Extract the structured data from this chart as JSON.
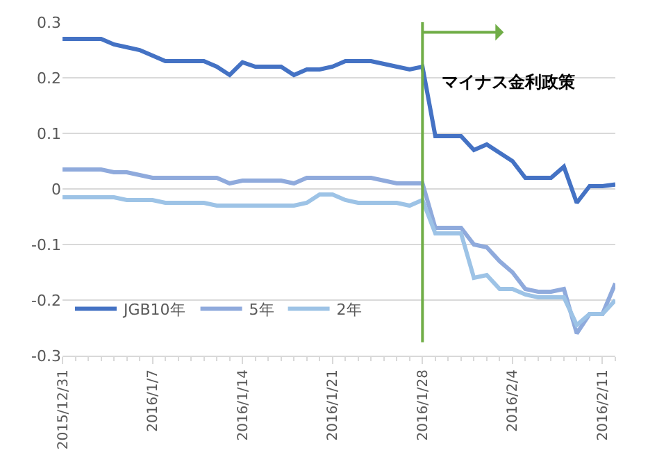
{
  "chart_data": {
    "type": "line",
    "x": [
      "2015-12-31",
      "2016-01-01",
      "2016-01-02",
      "2016-01-03",
      "2016-01-04",
      "2016-01-05",
      "2016-01-06",
      "2016-01-07",
      "2016-01-08",
      "2016-01-09",
      "2016-01-10",
      "2016-01-11",
      "2016-01-12",
      "2016-01-13",
      "2016-01-14",
      "2016-01-15",
      "2016-01-16",
      "2016-01-17",
      "2016-01-18",
      "2016-01-19",
      "2016-01-20",
      "2016-01-21",
      "2016-01-22",
      "2016-01-23",
      "2016-01-24",
      "2016-01-25",
      "2016-01-26",
      "2016-01-27",
      "2016-01-28",
      "2016-01-29",
      "2016-01-30",
      "2016-01-31",
      "2016-02-01",
      "2016-02-02",
      "2016-02-03",
      "2016-02-04",
      "2016-02-05",
      "2016-02-06",
      "2016-02-07",
      "2016-02-08",
      "2016-02-09",
      "2016-02-10",
      "2016-02-11",
      "2016-02-12"
    ],
    "series": [
      {
        "name": "JGB10年",
        "color": "#4472c4",
        "values": [
          0.27,
          0.27,
          0.27,
          0.27,
          0.26,
          0.255,
          0.25,
          0.24,
          0.23,
          0.23,
          0.23,
          0.23,
          0.22,
          0.205,
          0.228,
          0.22,
          0.22,
          0.22,
          0.205,
          0.215,
          0.215,
          0.22,
          0.23,
          0.23,
          0.23,
          0.225,
          0.22,
          0.215,
          0.22,
          0.095,
          0.095,
          0.095,
          0.07,
          0.08,
          0.065,
          0.05,
          0.02,
          0.02,
          0.02,
          0.04,
          -0.025,
          0.005,
          0.005,
          0.008
        ]
      },
      {
        "name": "5年",
        "color": "#8faadc",
        "values": [
          0.035,
          0.035,
          0.035,
          0.035,
          0.03,
          0.03,
          0.025,
          0.02,
          0.02,
          0.02,
          0.02,
          0.02,
          0.02,
          0.01,
          0.015,
          0.015,
          0.015,
          0.015,
          0.01,
          0.02,
          0.02,
          0.02,
          0.02,
          0.02,
          0.02,
          0.015,
          0.01,
          0.01,
          0.01,
          -0.07,
          -0.07,
          -0.07,
          -0.1,
          -0.105,
          -0.13,
          -0.15,
          -0.18,
          -0.185,
          -0.185,
          -0.18,
          -0.26,
          -0.225,
          -0.225,
          -0.17
        ]
      },
      {
        "name": "2年",
        "color": "#9dc3e6",
        "values": [
          -0.015,
          -0.015,
          -0.015,
          -0.015,
          -0.015,
          -0.02,
          -0.02,
          -0.02,
          -0.025,
          -0.025,
          -0.025,
          -0.025,
          -0.03,
          -0.03,
          -0.03,
          -0.03,
          -0.03,
          -0.03,
          -0.03,
          -0.025,
          -0.01,
          -0.01,
          -0.02,
          -0.025,
          -0.025,
          -0.025,
          -0.025,
          -0.03,
          -0.02,
          -0.08,
          -0.08,
          -0.08,
          -0.16,
          -0.155,
          -0.18,
          -0.18,
          -0.19,
          -0.195,
          -0.195,
          -0.195,
          -0.245,
          -0.225,
          -0.225,
          -0.2
        ]
      }
    ],
    "xlim": [
      "2015-12-31",
      "2016-02-12"
    ],
    "xticks": [
      {
        "value": "2015-12-31",
        "label": "2015/12/31"
      },
      {
        "value": "2016-01-07",
        "label": "2016/1/7"
      },
      {
        "value": "2016-01-14",
        "label": "2016/1/14"
      },
      {
        "value": "2016-01-21",
        "label": "2016/1/21"
      },
      {
        "value": "2016-01-28",
        "label": "2016/1/28"
      },
      {
        "value": "2016-02-04",
        "label": "2016/2/4"
      },
      {
        "value": "2016-02-11",
        "label": "2016/2/11"
      }
    ],
    "ylim": [
      -0.3,
      0.3
    ],
    "yticks": [
      -0.3,
      -0.2,
      -0.1,
      0,
      0.1,
      0.2,
      0.3
    ],
    "grid": "y",
    "legend": "bottom left",
    "marker": "none",
    "line_style": "solid",
    "ref_lines": [
      {
        "axis": "x",
        "value": "2016-01-28",
        "label": "マイナス金利政策",
        "color": "#70ad47"
      }
    ]
  }
}
